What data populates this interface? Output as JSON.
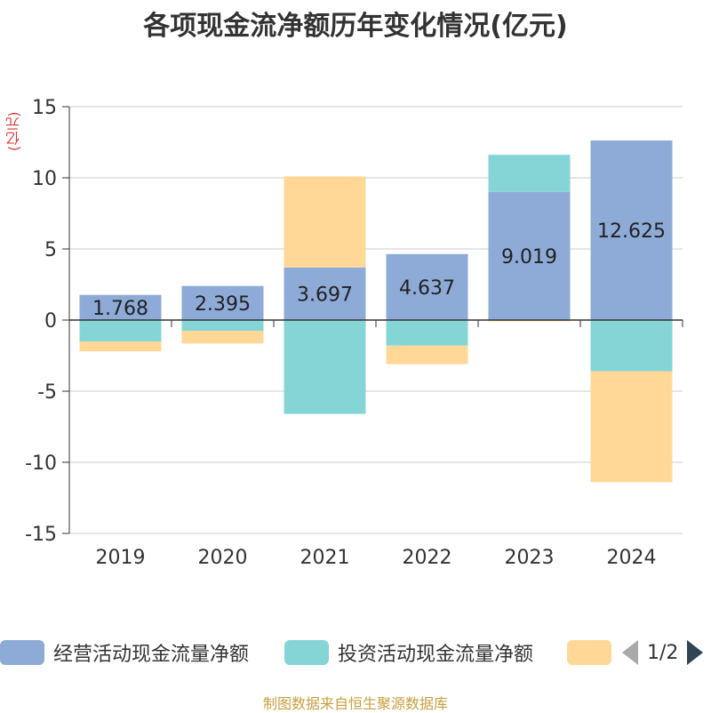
{
  "title": "各项现金流净额历年变化情况(亿元)",
  "unit_label": "(亿元)",
  "source": "制图数据来自恒生聚源数据库",
  "pager": {
    "text": "1/2"
  },
  "chart_data": {
    "type": "bar",
    "stacked": true,
    "categories": [
      "2019",
      "2020",
      "2021",
      "2022",
      "2023",
      "2024"
    ],
    "ylim": [
      -15,
      15
    ],
    "yticks": [
      15,
      10,
      5,
      0,
      -5,
      -10,
      -15
    ],
    "grid": true,
    "legend_position": "bottom",
    "series": [
      {
        "name": "经营活动现金流量净额",
        "color": "#8eabd8",
        "values": [
          1.768,
          2.395,
          3.697,
          4.637,
          9.019,
          12.625
        ],
        "labels": [
          "1.768",
          "2.395",
          "3.697",
          "4.637",
          "9.019",
          "12.625"
        ]
      },
      {
        "name": "投资活动现金流量净额",
        "color": "#86d5d6",
        "values": [
          -1.5,
          -0.75,
          -6.6,
          -1.8,
          2.6,
          -3.6
        ]
      },
      {
        "name": "",
        "color": "#ffd898",
        "values": [
          -0.7,
          -0.9,
          6.4,
          -1.3,
          -0.1,
          -7.8
        ]
      }
    ]
  }
}
